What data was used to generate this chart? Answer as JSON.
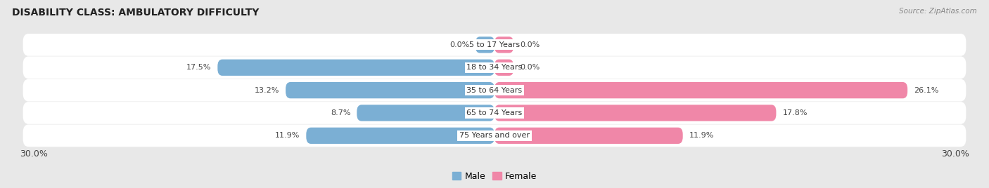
{
  "title": "DISABILITY CLASS: AMBULATORY DIFFICULTY",
  "source": "Source: ZipAtlas.com",
  "categories": [
    "5 to 17 Years",
    "18 to 34 Years",
    "35 to 64 Years",
    "65 to 74 Years",
    "75 Years and over"
  ],
  "male_values": [
    0.0,
    17.5,
    13.2,
    8.7,
    11.9
  ],
  "female_values": [
    0.0,
    0.0,
    26.1,
    17.8,
    11.9
  ],
  "male_color": "#7bafd4",
  "female_color": "#f087a8",
  "male_label": "Male",
  "female_label": "Female",
  "x_max": 30.0,
  "x_min": -30.0,
  "background_color": "#e8e8e8",
  "row_color": "#ffffff",
  "title_fontsize": 10,
  "axis_label_fontsize": 9,
  "annotation_fontsize": 8,
  "category_fontsize": 8
}
